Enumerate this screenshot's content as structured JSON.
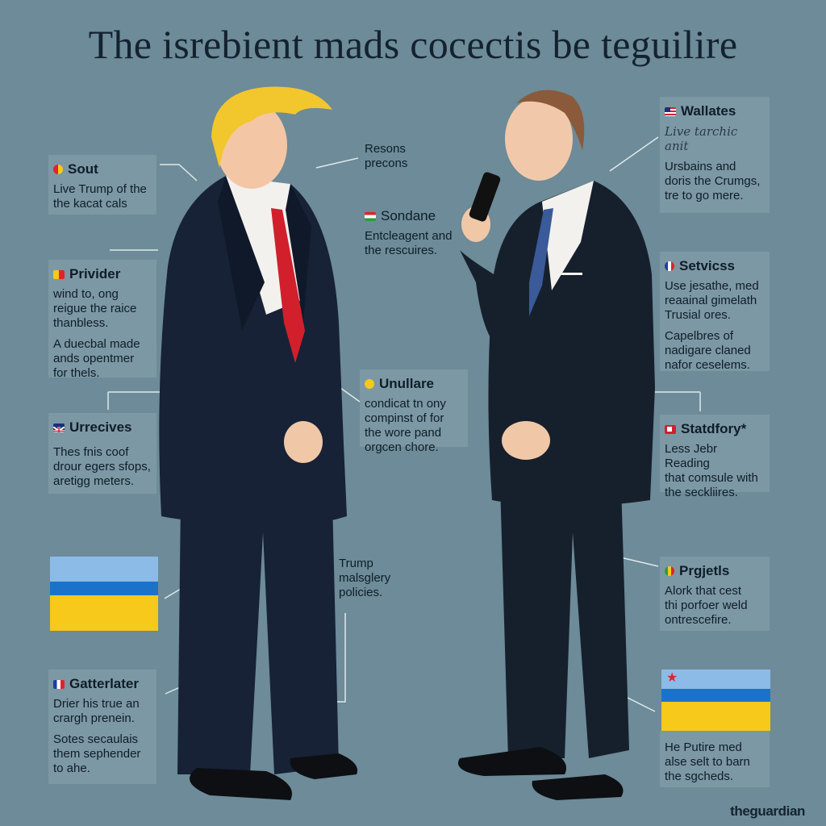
{
  "title": "The isrebient mads cocectis be teguilire",
  "brand": "theguardian",
  "left_boxes": [
    {
      "head": "Sout",
      "body": "Live Trump of the\nthe kacat cals"
    },
    {
      "head": "Privider",
      "body": "wind to, ong\nreigue the raice\nthanbless.",
      "body2": "A duecbal made\nands opentmer\nfor thels."
    },
    {
      "head": "Urrecives",
      "body": "Thes fnis coof\ndrour egers sfops,\naretigg meters."
    },
    {
      "head": "Gatterlater",
      "body": "Drier his true an\ncrargh prenein.",
      "body2": "Sotes secaulais\nthem sephender\nto ahe."
    }
  ],
  "center_notes": [
    {
      "text": "Resons\nprecons"
    },
    {
      "head": "Sondane",
      "body": "Entcleagent and\nthe rescuires."
    },
    {
      "head": "Unullare",
      "body": "condicat tn ony\ncompinst of for\nthe wore pand\norgcen chore."
    },
    {
      "text": "Trump\nmalsglery\npolicies."
    }
  ],
  "right_boxes": [
    {
      "head": "Wallates",
      "scribble": "Live tarchic\nanit",
      "body": "Ursbains and\ndoris the Crumgs,\ntre to go mere."
    },
    {
      "head": "Setvicss",
      "body": "Use jesathe, med\nreaainal gimelath\nTrusial ores.",
      "body2": "Capelbres of\nnadigare claned\nnafor ceselems."
    },
    {
      "head": "Statdfory*",
      "body": "Less Jebr Reading\nthat comsule with\nthe seckliires."
    },
    {
      "head": "Prgjetls",
      "body": "Alork that cest\nthi porfoer weld\nontrescefire."
    },
    {
      "body": "He Putire med\nalse selt to barn\nthe sgcheds."
    }
  ],
  "colors": {
    "background": "#6d8b98",
    "box": "#7c98a4",
    "flag_blue": "#8cbbe8",
    "flag_band": "#1a73c9",
    "flag_yellow": "#f6c91a",
    "suit": "#132034",
    "tie_red": "#d1202c"
  }
}
